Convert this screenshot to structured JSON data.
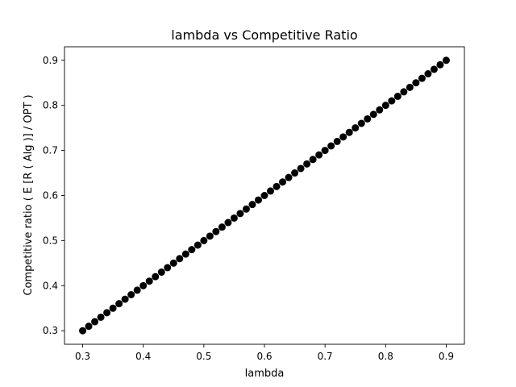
{
  "chart_data": {
    "type": "scatter",
    "title": "lambda vs Competitive Ratio",
    "xlabel": "lambda",
    "ylabel": "Competitive ratio ( E [R ( Alg )] / OPT )",
    "xlim": [
      0.27,
      0.93
    ],
    "ylim": [
      0.27,
      0.93
    ],
    "xticks": [
      "0.3",
      "0.4",
      "0.5",
      "0.6",
      "0.7",
      "0.8",
      "0.9"
    ],
    "yticks": [
      "0.3",
      "0.4",
      "0.5",
      "0.6",
      "0.7",
      "0.8",
      "0.9"
    ],
    "grid": false,
    "marker_color": "#000000",
    "series": [
      {
        "x": [
          0.3,
          0.31,
          0.32,
          0.33,
          0.34,
          0.35,
          0.36,
          0.37,
          0.38,
          0.39,
          0.4,
          0.41,
          0.42,
          0.43,
          0.44,
          0.45,
          0.46,
          0.47,
          0.48,
          0.49,
          0.5,
          0.51,
          0.52,
          0.53,
          0.54,
          0.55,
          0.56,
          0.57,
          0.58,
          0.59,
          0.6,
          0.61,
          0.62,
          0.63,
          0.64,
          0.65,
          0.66,
          0.67,
          0.68,
          0.69,
          0.7,
          0.71,
          0.72,
          0.73,
          0.74,
          0.75,
          0.76,
          0.77,
          0.78,
          0.79,
          0.8,
          0.81,
          0.82,
          0.83,
          0.84,
          0.85,
          0.86,
          0.87,
          0.88,
          0.89,
          0.9
        ],
        "y": [
          0.3,
          0.31,
          0.32,
          0.33,
          0.34,
          0.35,
          0.36,
          0.37,
          0.38,
          0.39,
          0.4,
          0.41,
          0.42,
          0.43,
          0.44,
          0.45,
          0.46,
          0.47,
          0.48,
          0.49,
          0.5,
          0.51,
          0.52,
          0.53,
          0.54,
          0.55,
          0.56,
          0.57,
          0.58,
          0.59,
          0.6,
          0.61,
          0.62,
          0.63,
          0.64,
          0.65,
          0.66,
          0.67,
          0.68,
          0.69,
          0.7,
          0.71,
          0.72,
          0.73,
          0.74,
          0.75,
          0.76,
          0.77,
          0.78,
          0.79,
          0.8,
          0.81,
          0.82,
          0.83,
          0.84,
          0.85,
          0.86,
          0.87,
          0.88,
          0.89,
          0.9
        ]
      }
    ]
  }
}
